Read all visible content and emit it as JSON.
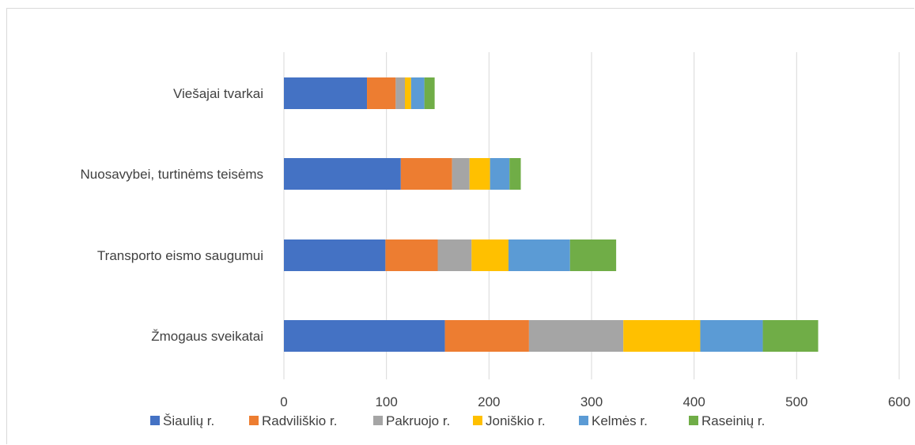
{
  "chart_data": {
    "type": "bar",
    "orientation": "horizontal",
    "stacked": true,
    "categories": [
      "Viešajai tvarkai",
      "Nuosavybei, turtinėms teisėms",
      "Transporto eismo saugumui",
      "Žmogaus sveikatai"
    ],
    "series": [
      {
        "name": "Šiaulių r.",
        "color": "#4472c4",
        "values": [
          81,
          114,
          99,
          157
        ]
      },
      {
        "name": "Radviliškio r.",
        "color": "#ed7d31",
        "values": [
          28,
          50,
          51,
          82
        ]
      },
      {
        "name": "Pakruojo r.",
        "color": "#a5a5a5",
        "values": [
          9,
          17,
          33,
          92
        ]
      },
      {
        "name": "Joniškio r.",
        "color": "#ffc000",
        "values": [
          6,
          20,
          36,
          75
        ]
      },
      {
        "name": "Kelmės r.",
        "color": "#5b9bd5",
        "values": [
          13,
          19,
          60,
          61
        ]
      },
      {
        "name": "Raseinių r.",
        "color": "#70ad47",
        "values": [
          10,
          11,
          45,
          54
        ]
      }
    ],
    "xlim": [
      0,
      600
    ],
    "xticks": [
      0,
      100,
      200,
      300,
      400,
      500,
      600
    ],
    "grid": true,
    "legend_position": "bottom",
    "title": "",
    "xlabel": "",
    "ylabel": ""
  }
}
